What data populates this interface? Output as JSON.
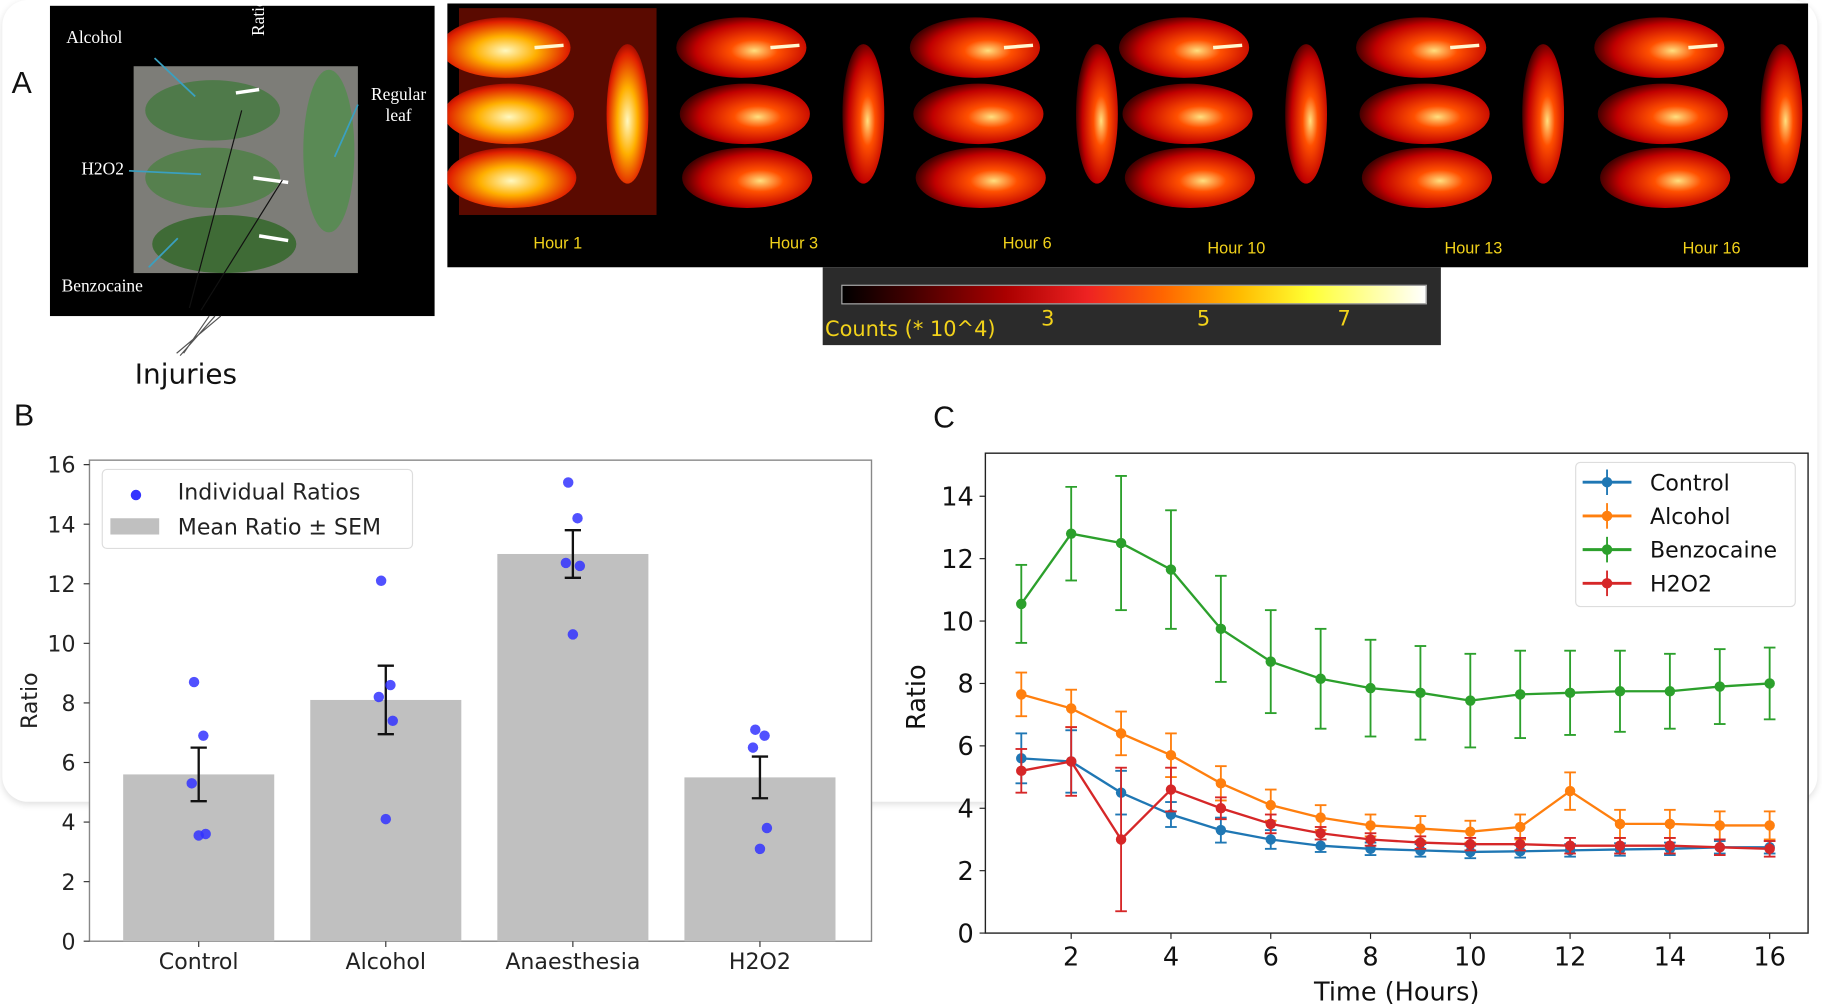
{
  "panel_labels": {
    "a": "A",
    "b": "B",
    "c": "C"
  },
  "photo": {
    "labels": {
      "alcohol": "Alcohol",
      "ratio": "Ratio",
      "regular_leaf": "Regular leaf",
      "h2o2": "H2O2",
      "benzocaine": "Benzocaine"
    },
    "injuries_label": "Injuries"
  },
  "heatmap": {
    "hours": [
      "Hour 1",
      "Hour 3",
      "Hour 6",
      "Hour 10",
      "Hour 13",
      "Hour 16"
    ]
  },
  "colorbar": {
    "label": "Counts (* 10^4)",
    "ticks": [
      "3",
      "5",
      "7"
    ],
    "colormap": "black-red-yellow-white"
  },
  "chart_data": [
    {
      "type": "bar",
      "xlabel": "",
      "ylabel": "Ratio",
      "ylim": [
        0,
        16.15
      ],
      "yticks": [
        0,
        2,
        4,
        6,
        8,
        10,
        12,
        14,
        16
      ],
      "categories": [
        "Control",
        "Alcohol",
        "Anaesthesia",
        "H2O2"
      ],
      "values": [
        5.6,
        8.1,
        13.0,
        5.5
      ],
      "sem": [
        0.9,
        1.15,
        0.8,
        0.7
      ],
      "points": [
        [
          8.7,
          6.9,
          5.3,
          3.6,
          3.55
        ],
        [
          12.1,
          8.6,
          8.2,
          7.4,
          4.1
        ],
        [
          15.4,
          14.2,
          12.7,
          12.6,
          10.3
        ],
        [
          7.1,
          6.9,
          6.5,
          3.8,
          3.1
        ]
      ],
      "legend": {
        "position": "top-left",
        "entries": [
          "Individual Ratios",
          "Mean Ratio ± SEM"
        ]
      },
      "colors": {
        "bar": "#c0c0c0",
        "points": "#3333ff",
        "error": "#000000"
      }
    },
    {
      "type": "line",
      "xlabel": "Time (Hours)",
      "ylabel": "Ratio",
      "xlim": [
        0.28,
        16.77
      ],
      "ylim": [
        0,
        15.38
      ],
      "xticks": [
        2,
        4,
        6,
        8,
        10,
        12,
        14,
        16
      ],
      "yticks": [
        0,
        2,
        4,
        6,
        8,
        10,
        12,
        14
      ],
      "x": [
        1,
        2,
        3,
        4,
        5,
        6,
        7,
        8,
        9,
        10,
        11,
        12,
        13,
        14,
        15,
        16
      ],
      "legend": {
        "position": "top-right"
      },
      "series": [
        {
          "name": "Control",
          "color": "#1f77b4",
          "values": [
            5.6,
            5.5,
            4.5,
            3.8,
            3.3,
            3.0,
            2.8,
            2.7,
            2.65,
            2.6,
            2.62,
            2.65,
            2.68,
            2.7,
            2.75,
            2.75
          ],
          "err": [
            0.8,
            1.0,
            0.7,
            0.4,
            0.4,
            0.3,
            0.2,
            0.2,
            0.2,
            0.2,
            0.2,
            0.2,
            0.2,
            0.2,
            0.2,
            0.2
          ]
        },
        {
          "name": "Alcohol",
          "color": "#ff7f0e",
          "values": [
            7.65,
            7.2,
            6.4,
            5.7,
            4.8,
            4.1,
            3.7,
            3.45,
            3.35,
            3.25,
            3.4,
            4.55,
            3.5,
            3.5,
            3.45,
            3.45
          ],
          "err": [
            0.7,
            0.6,
            0.7,
            0.7,
            0.55,
            0.5,
            0.4,
            0.35,
            0.4,
            0.35,
            0.4,
            0.6,
            0.45,
            0.45,
            0.45,
            0.45
          ]
        },
        {
          "name": "Benzocaine",
          "color": "#2ca02c",
          "values": [
            10.55,
            12.8,
            12.5,
            11.65,
            9.75,
            8.7,
            8.15,
            7.85,
            7.7,
            7.45,
            7.65,
            7.7,
            7.75,
            7.75,
            7.9,
            8.0
          ],
          "err": [
            1.25,
            1.5,
            2.15,
            1.9,
            1.7,
            1.65,
            1.6,
            1.55,
            1.5,
            1.5,
            1.4,
            1.35,
            1.3,
            1.2,
            1.2,
            1.15
          ]
        },
        {
          "name": "H2O2",
          "color": "#d62728",
          "values": [
            5.2,
            5.5,
            3.0,
            4.6,
            4.0,
            3.5,
            3.2,
            3.0,
            2.9,
            2.85,
            2.85,
            2.8,
            2.8,
            2.8,
            2.75,
            2.7
          ],
          "err": [
            0.7,
            1.1,
            2.3,
            0.7,
            0.35,
            0.3,
            0.2,
            0.2,
            0.2,
            0.2,
            0.2,
            0.25,
            0.25,
            0.25,
            0.25,
            0.25
          ]
        }
      ]
    }
  ]
}
